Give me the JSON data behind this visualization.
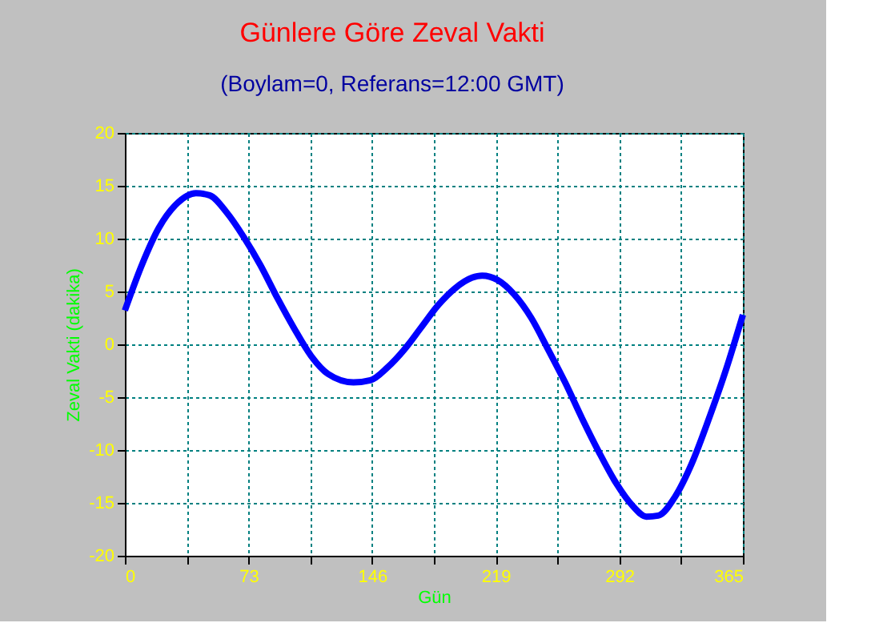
{
  "chart_data": {
    "type": "line",
    "title": "Günlere Göre  Zeval Vakti",
    "subtitle": "(Boylam=0, Referans=12:00 GMT)",
    "xlabel": "Gün",
    "ylabel": "Zeval Vakti (dakika)",
    "x": [
      0,
      10,
      20,
      30,
      42,
      50,
      60,
      70,
      80,
      90,
      100,
      110,
      120,
      135,
      145,
      155,
      165,
      175,
      185,
      195,
      205,
      211,
      220,
      230,
      240,
      250,
      260,
      270,
      280,
      290,
      300,
      308,
      315,
      325,
      335,
      345,
      355,
      365
    ],
    "series": [
      {
        "color": "#0000ff",
        "values": [
          3.2,
          7.5,
          11,
          13.2,
          14.3,
          14.1,
          12.5,
          10.2,
          7.5,
          4.4,
          1.5,
          -1.1,
          -2.8,
          -3.6,
          -3.4,
          -2.2,
          -0.5,
          1.6,
          3.7,
          5.3,
          6.3,
          6.5,
          6.1,
          4.7,
          2.5,
          -0.5,
          -3.6,
          -7,
          -10.2,
          -13.1,
          -15.3,
          -16.3,
          -16.2,
          -14.4,
          -11.2,
          -7,
          -2.4,
          2.8
        ]
      }
    ],
    "xlim": [
      0,
      365
    ],
    "xticks": [
      0,
      {
        "value": 36.5,
        "label": null
      },
      73,
      {
        "value": 109.5,
        "label": null
      },
      146,
      {
        "value": 182.5,
        "label": null
      },
      219,
      {
        "value": 255.5,
        "label": null
      },
      292,
      {
        "value": 328.5,
        "label": null
      },
      365
    ],
    "ylim": [
      -20,
      20
    ],
    "yticks": [
      -20,
      -15,
      -10,
      -5,
      0,
      5,
      10,
      15,
      20
    ],
    "grid": true,
    "marker": "none",
    "line_style": "solid"
  }
}
